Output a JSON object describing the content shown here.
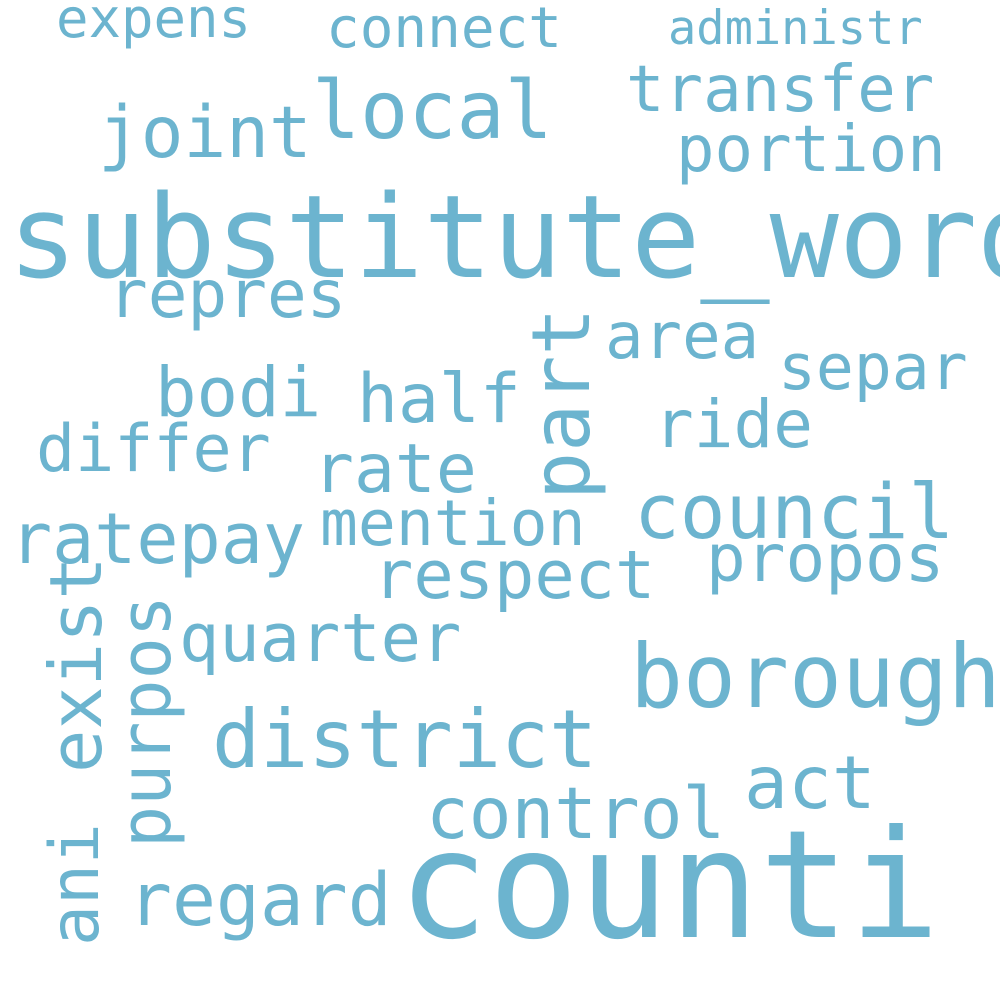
{
  "style": {
    "word_color": "#6cb4cf",
    "background": "#ffffff"
  },
  "words": [
    "substitute_word",
    "counti",
    "borough",
    "district",
    "local",
    "council",
    "transfer",
    "portion",
    "joint",
    "respect",
    "repres",
    "part",
    "bodi",
    "half",
    "rate",
    "ratepay",
    "mention",
    "area",
    "separ",
    "ride",
    "differ",
    "propos",
    "quarter",
    "exist",
    "purpos",
    "control",
    "act",
    "regard",
    "ani",
    "expens",
    "connect",
    "administr"
  ]
}
